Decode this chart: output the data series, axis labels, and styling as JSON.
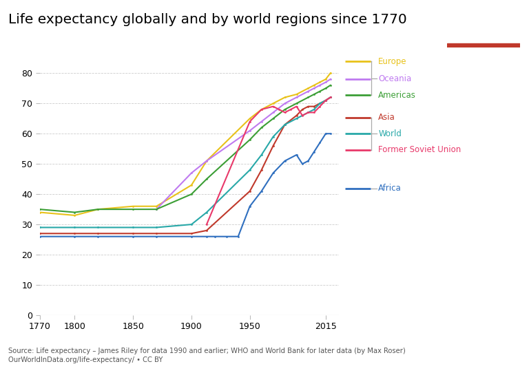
{
  "title": "Life expectancy globally and by world regions since 1770",
  "source_line1": "Source: Life expectancy – James Riley for data 1990 and earlier; WHO and World Bank for later data (by Max Roser)",
  "source_line2": "OurWorldInData.org/life-expectancy/ • CC BY",
  "xlim": [
    1770,
    2026
  ],
  "ylim": [
    0,
    90
  ],
  "yticks": [
    0,
    10,
    20,
    30,
    40,
    50,
    60,
    70,
    80
  ],
  "xticks": [
    1770,
    1800,
    1850,
    1900,
    1950,
    2015
  ],
  "series": {
    "Europe": {
      "color": "#e8c21a",
      "data": {
        "1770": 34,
        "1800": 33,
        "1820": 35,
        "1850": 36,
        "1870": 36,
        "1900": 43,
        "1913": 51,
        "1950": 65,
        "1960": 68,
        "1970": 70,
        "1980": 72,
        "1990": 73,
        "2000": 75,
        "2005": 76,
        "2010": 77,
        "2015": 78,
        "2019": 80
      }
    },
    "Oceania": {
      "color": "#bf7af0",
      "data": {
        "1870": 35,
        "1900": 47,
        "1913": 51,
        "1950": 61,
        "1960": 64,
        "1970": 67,
        "1980": 70,
        "1990": 72,
        "2000": 74,
        "2005": 75,
        "2010": 76,
        "2015": 77,
        "2019": 78
      }
    },
    "Americas": {
      "color": "#3b9e35",
      "data": {
        "1770": 35,
        "1800": 34,
        "1820": 35,
        "1850": 35,
        "1870": 35,
        "1900": 40,
        "1913": 45,
        "1950": 58,
        "1960": 62,
        "1970": 65,
        "1980": 68,
        "1990": 70,
        "2000": 72,
        "2005": 73,
        "2010": 74,
        "2015": 75,
        "2019": 76
      }
    },
    "Asia": {
      "color": "#c0392b",
      "data": {
        "1770": 27,
        "1800": 27,
        "1820": 27,
        "1850": 27,
        "1870": 27,
        "1900": 27,
        "1913": 28,
        "1950": 41,
        "1960": 48,
        "1970": 56,
        "1980": 63,
        "1990": 66,
        "1995": 68,
        "2000": 69,
        "2005": 69,
        "2010": 70,
        "2015": 71,
        "2019": 72
      }
    },
    "World": {
      "color": "#28a8a8",
      "data": {
        "1770": 29,
        "1800": 29,
        "1820": 29,
        "1850": 29,
        "1870": 29,
        "1900": 30,
        "1913": 34,
        "1950": 48,
        "1960": 53,
        "1970": 59,
        "1980": 63,
        "1990": 65,
        "2000": 67,
        "2005": 68,
        "2010": 70,
        "2015": 71,
        "2019": 72
      }
    },
    "Former Soviet Union": {
      "color": "#e8396a",
      "data": {
        "1913": 30,
        "1950": 64,
        "1960": 68,
        "1970": 69,
        "1975": 68,
        "1980": 67,
        "1985": 68,
        "1990": 69,
        "1995": 66,
        "2000": 67,
        "2005": 67,
        "2010": 69,
        "2015": 71,
        "2019": 72
      }
    },
    "Africa": {
      "color": "#2f6fbf",
      "data": {
        "1770": 26,
        "1800": 26,
        "1820": 26,
        "1850": 26,
        "1870": 26,
        "1900": 26,
        "1913": 26,
        "1920": 26,
        "1930": 26,
        "1940": 26,
        "1950": 36,
        "1960": 41,
        "1970": 47,
        "1980": 51,
        "1990": 53,
        "1995": 50,
        "2000": 51,
        "2005": 54,
        "2010": 57,
        "2015": 60,
        "2019": 60
      }
    }
  },
  "legend_order": [
    "Europe",
    "Oceania",
    "Americas",
    "Asia",
    "World",
    "Former Soviet Union",
    "Africa"
  ]
}
